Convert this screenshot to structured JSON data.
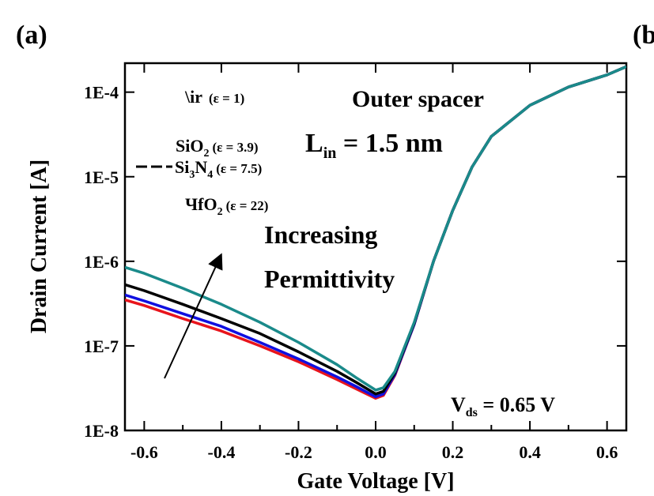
{
  "panel_label": "(a)",
  "next_panel_label": "(b",
  "chart_data": {
    "type": "line",
    "title": "",
    "xlabel": "Gate Voltage [V]",
    "ylabel": "Drain Current [A]",
    "xlim": [
      -0.65,
      0.65
    ],
    "ylim": [
      1e-08,
      0.00022
    ],
    "yscale": "log",
    "grid": false,
    "legend_position": "top-left",
    "x_ticks": [
      "-0.6",
      "-0.4",
      "-0.2",
      "0.0",
      "0.2",
      "0.4",
      "0.6"
    ],
    "x_tick_values": [
      -0.6,
      -0.4,
      -0.2,
      0.0,
      0.2,
      0.4,
      0.6
    ],
    "y_ticks": [
      "1E-8",
      "1E-7",
      "1E-6",
      "1E-5",
      "1E-4"
    ],
    "y_tick_values": [
      1e-08,
      1e-07,
      1e-06,
      1e-05,
      0.0001
    ],
    "x": [
      -0.65,
      -0.6,
      -0.5,
      -0.4,
      -0.3,
      -0.2,
      -0.1,
      -0.05,
      0.0,
      0.02,
      0.05,
      0.1,
      0.15,
      0.2,
      0.25,
      0.3,
      0.4,
      0.5,
      0.6,
      0.65
    ],
    "series": [
      {
        "name": "Air (ε = 1)",
        "color": "#e8141c",
        "values": [
          3.5e-07,
          3e-07,
          2.1e-07,
          1.5e-07,
          1e-07,
          6.5e-08,
          4e-08,
          3.1e-08,
          2.4e-08,
          2.6e-08,
          4.5e-08,
          1.8e-07,
          1e-06,
          4e-06,
          1.3e-05,
          3e-05,
          7e-05,
          0.000115,
          0.00016,
          0.0002
        ]
      },
      {
        "name": "SiO2 (ε = 3.9)",
        "color": "#1010e0",
        "values": [
          4e-07,
          3.4e-07,
          2.4e-07,
          1.7e-07,
          1.1e-07,
          7e-08,
          4.3e-08,
          3.3e-08,
          2.5e-08,
          2.7e-08,
          4.6e-08,
          1.8e-07,
          1e-06,
          4e-06,
          1.3e-05,
          3e-05,
          7e-05,
          0.000115,
          0.00016,
          0.0002
        ]
      },
      {
        "name": "Si3N4 (ε = 7.5)",
        "color": "#000000",
        "values": [
          5.3e-07,
          4.5e-07,
          3.1e-07,
          2.1e-07,
          1.4e-07,
          8.5e-08,
          5e-08,
          3.7e-08,
          2.7e-08,
          2.9e-08,
          4.8e-08,
          1.85e-07,
          1e-06,
          4e-06,
          1.3e-05,
          3e-05,
          7e-05,
          0.000115,
          0.00016,
          0.0002
        ]
      },
      {
        "name": "HfO2 (ε = 22)",
        "color": "#1a8a8a",
        "values": [
          8.5e-07,
          7.2e-07,
          4.8e-07,
          3.1e-07,
          1.9e-07,
          1.1e-07,
          6e-08,
          4.2e-08,
          3e-08,
          3.2e-08,
          5e-08,
          1.9e-07,
          1e-06,
          4e-06,
          1.3e-05,
          3e-05,
          7e-05,
          0.000115,
          0.00016,
          0.0002
        ]
      }
    ],
    "legend": {
      "air_main": "\\ir",
      "air_eps": "(ε = 1)",
      "sio2_main": "SiO",
      "sio2_sub": "2",
      "sio2_eps": "(ε = 3.9)",
      "si3n4_a": "Si",
      "si3n4_sub1": "3",
      "si3n4_b": "N",
      "si3n4_sub2": "4",
      "si3n4_eps": "(ε = 7.5)",
      "hfo2_main": "ЧfO",
      "hfo2_sub": "2",
      "hfo2_eps": "(ε = 22)"
    },
    "annotations": {
      "outer_spacer": "Outer spacer",
      "lin_main": "L",
      "lin_sub": "in",
      "lin_value": " = 1.5 nm",
      "increasing": "Increasing",
      "permittivity": "Permittivity",
      "vds_main": "V",
      "vds_sub": "ds",
      "vds_value": " = 0.65 V"
    }
  }
}
